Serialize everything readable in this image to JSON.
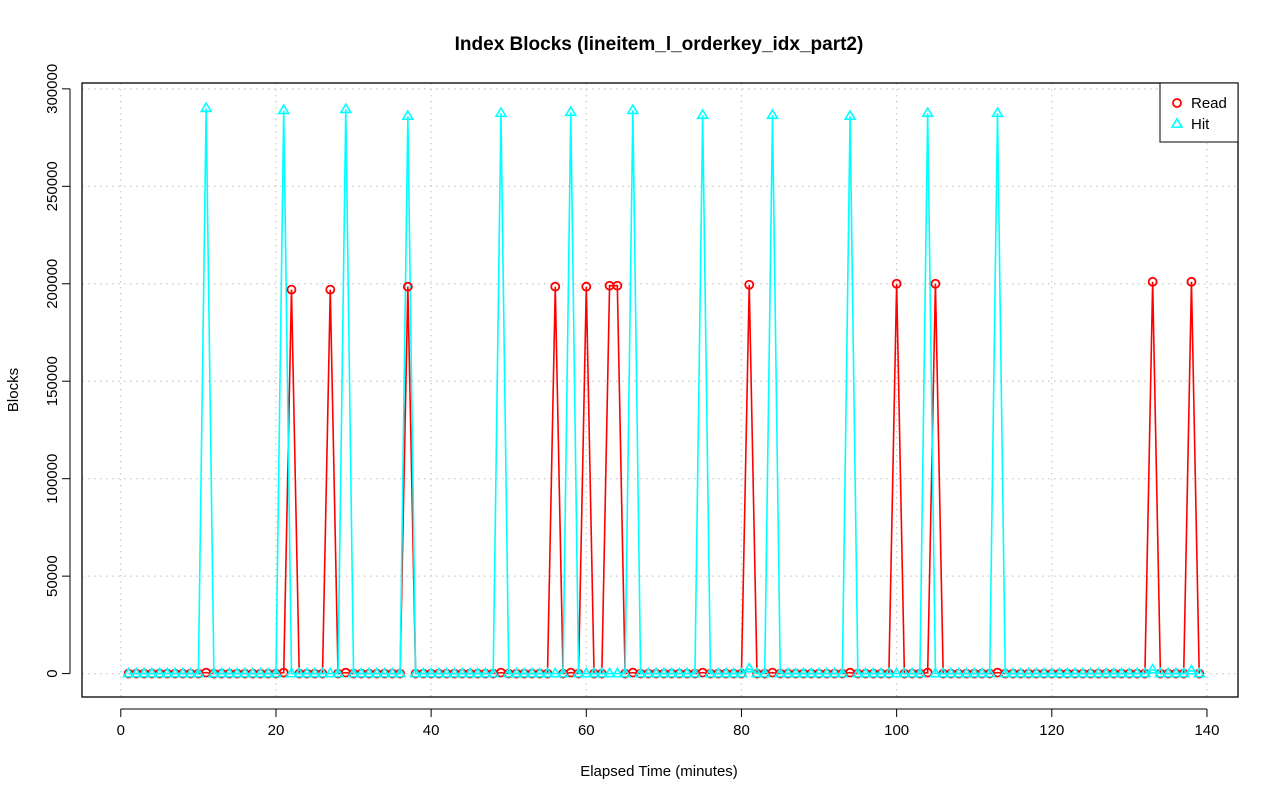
{
  "chart_data": {
    "type": "line",
    "title": "Index Blocks (lineitem_l_orderkey_idx_part2)",
    "xlabel": "Elapsed Time (minutes)",
    "ylabel": "Blocks",
    "xlim": [
      -5,
      144
    ],
    "ylim": [
      -12000,
      303000
    ],
    "xticks": [
      "0",
      "20",
      "40",
      "60",
      "80",
      "100",
      "120",
      "140"
    ],
    "yticks": [
      "0",
      "50000",
      "100000",
      "150000",
      "200000",
      "250000",
      "300000"
    ],
    "grid": true,
    "legend_position": "top-right",
    "x": [
      1,
      2,
      3,
      4,
      5,
      6,
      7,
      8,
      9,
      10,
      11,
      12,
      13,
      14,
      15,
      16,
      17,
      18,
      19,
      20,
      21,
      22,
      23,
      24,
      25,
      26,
      27,
      28,
      29,
      30,
      31,
      32,
      33,
      34,
      35,
      36,
      37,
      38,
      39,
      40,
      41,
      42,
      43,
      44,
      45,
      46,
      47,
      48,
      49,
      50,
      51,
      52,
      53,
      54,
      55,
      56,
      57,
      58,
      59,
      60,
      61,
      62,
      63,
      64,
      65,
      66,
      67,
      68,
      69,
      70,
      71,
      72,
      73,
      74,
      75,
      76,
      77,
      78,
      79,
      80,
      81,
      82,
      83,
      84,
      85,
      86,
      87,
      88,
      89,
      90,
      91,
      92,
      93,
      94,
      95,
      96,
      97,
      98,
      99,
      100,
      101,
      102,
      103,
      104,
      105,
      106,
      107,
      108,
      109,
      110,
      111,
      112,
      113,
      114,
      115,
      116,
      117,
      118,
      119,
      120,
      121,
      122,
      123,
      124,
      125,
      126,
      127,
      128,
      129,
      130,
      131,
      132,
      133,
      134,
      135,
      136,
      137,
      138,
      139
    ],
    "series": [
      {
        "name": "Read",
        "color": "#ff0000",
        "marker": "circle",
        "spikes": {
          "11": 500,
          "21": 500,
          "22": 197000,
          "27": 197000,
          "29": 500,
          "37": 198500,
          "49": 500,
          "56": 198500,
          "58": 500,
          "60": 198500,
          "63": 199000,
          "64": 199000,
          "66": 500,
          "75": 500,
          "81": 199500,
          "84": 500,
          "94": 500,
          "100": 200000,
          "104": 500,
          "105": 200000,
          "113": 500,
          "133": 201000,
          "138": 201000
        }
      },
      {
        "name": "Hit",
        "color": "#00ffff",
        "marker": "triangle",
        "spikes": {
          "11": 290000,
          "21": 289000,
          "29": 289500,
          "37": 286000,
          "49": 287500,
          "58": 288000,
          "66": 289000,
          "75": 286500,
          "81": 2500,
          "84": 286500,
          "94": 286000,
          "104": 287500,
          "113": 287500,
          "133": 2000,
          "138": 1500
        }
      }
    ]
  }
}
